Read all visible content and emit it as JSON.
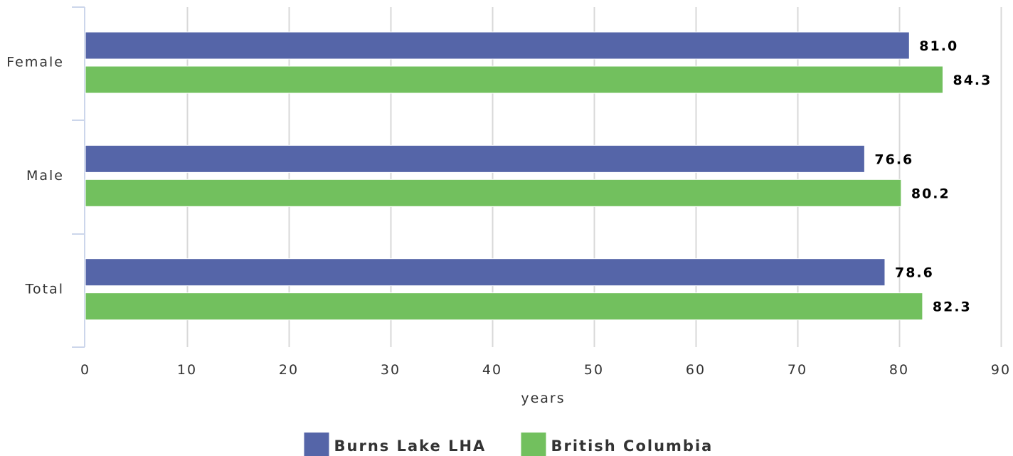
{
  "chart_data": {
    "type": "bar",
    "orientation": "horizontal",
    "categories": [
      "Female",
      "Male",
      "Total"
    ],
    "series": [
      {
        "name": "Burns Lake LHA",
        "color": "#5565a8",
        "values": [
          81.0,
          76.6,
          78.6
        ]
      },
      {
        "name": "British Columbia",
        "color": "#72c05e",
        "values": [
          84.3,
          80.2,
          82.3
        ]
      }
    ],
    "xlabel": "years",
    "xlim": [
      0,
      90
    ],
    "xticks": [
      0,
      10,
      20,
      30,
      40,
      50,
      60,
      70,
      80,
      90
    ],
    "grid": true,
    "legend": "bottom-center",
    "data_labels": true
  }
}
